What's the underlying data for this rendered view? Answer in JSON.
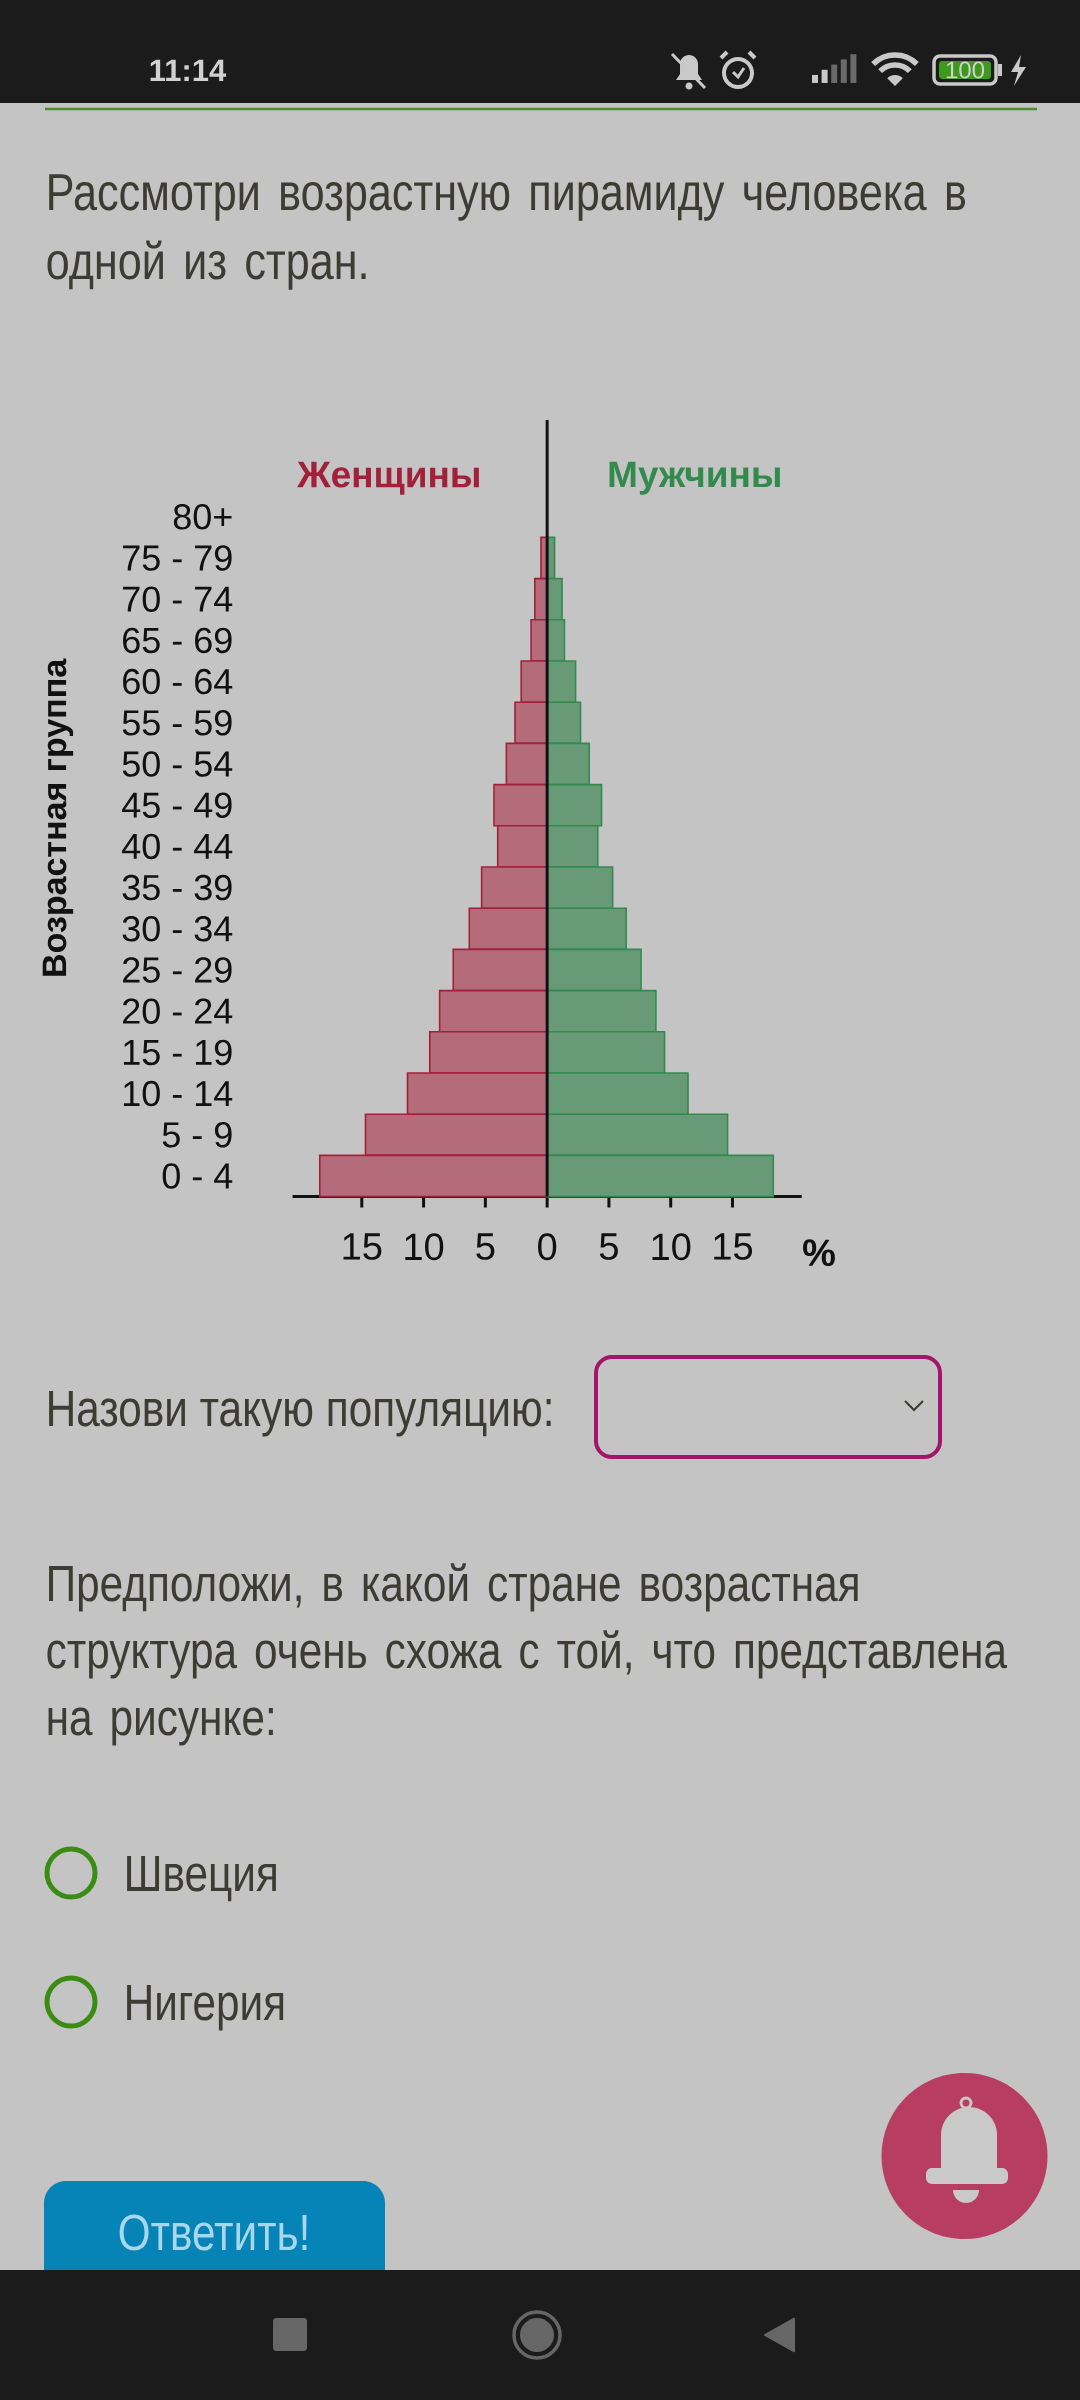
{
  "chart_data": {
    "type": "bar",
    "orientation": "horizontal",
    "stacked": true,
    "title": "Рассмотри возрастную пирамиду человека в одной из стран.",
    "ylabel": "Возрастная группа",
    "xlabel": "%",
    "categories": [
      "80+",
      "75 - 79",
      "70 - 74",
      "65 - 69",
      "60 - 64",
      "55 - 59",
      "50 - 54",
      "45 - 49",
      "40 - 44",
      "35 - 39",
      "30 - 34",
      "25 - 29",
      "20 - 24",
      "15 - 19",
      "10 - 14",
      "5 - 9",
      "0 - 4"
    ],
    "series": [
      {
        "name": "Женщины",
        "color": "#b46c7a",
        "values": [
          null,
          -0.5,
          -1.0,
          -1.3,
          -2.1,
          -2.6,
          -3.3,
          -4.3,
          -4.0,
          -5.3,
          -6.3,
          -7.6,
          -8.7,
          -9.5,
          -11.3,
          -14.7,
          -18.4
        ]
      },
      {
        "name": "Мужчины",
        "color": "#699a78",
        "values": [
          null,
          0.6,
          1.2,
          1.4,
          2.3,
          2.7,
          3.4,
          4.4,
          4.1,
          5.3,
          6.4,
          7.6,
          8.8,
          9.5,
          11.4,
          14.6,
          18.3
        ]
      }
    ],
    "xlim": [
      -20.6,
      20.6
    ],
    "xticks": [
      {
        "value": -15,
        "label": "15"
      },
      {
        "value": -10,
        "label": "10"
      },
      {
        "value": -5,
        "label": "5"
      },
      0,
      5,
      10,
      15
    ],
    "annotations": [
      "11:14",
      "100",
      "Назови такую популяцию:",
      "Предположи, в какой стране возрастная структура очень схожа с той, что представлена на рисунке:",
      "Швеция",
      "Нигерия",
      "Ответить!"
    ]
  }
}
